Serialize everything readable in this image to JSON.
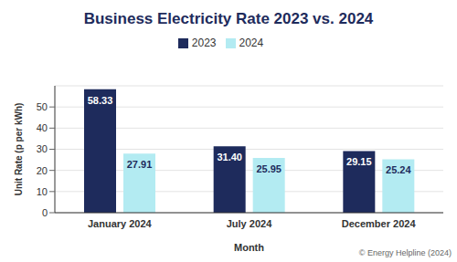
{
  "chart_data": {
    "type": "bar",
    "title": "Business Electricity Rate 2023 vs. 2024",
    "x_label": "Month",
    "y_label": "Unit Rate (p per kWh)",
    "source": "© Energy Helpline (2024)",
    "categories": [
      "January 2024",
      "July 2024",
      "December 2024"
    ],
    "series": [
      {
        "name": "2023",
        "color": "#1e2b5c",
        "values": [
          58.33,
          31.4,
          29.15
        ],
        "value_labels": [
          "58.33",
          "31.40",
          "29.15"
        ]
      },
      {
        "name": "2024",
        "color": "#b3ebf2",
        "values": [
          27.91,
          25.95,
          25.24
        ],
        "value_labels": [
          "27.91",
          "25.95",
          "25.24"
        ]
      }
    ],
    "ylim": [
      0,
      60
    ],
    "yticks": [
      0,
      10,
      20,
      30,
      40,
      50
    ],
    "grid": true,
    "legend": "top",
    "data_labels": true
  }
}
